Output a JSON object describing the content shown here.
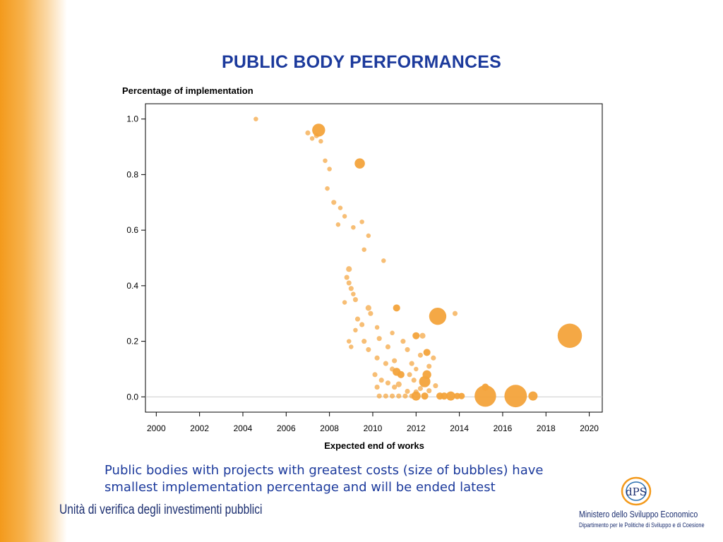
{
  "slide": {
    "title": "PUBLIC BODY PERFORMANCES",
    "caption_line1": "Public bodies with projects with greatest costs (size of bubbles) have",
    "caption_line2": "smallest implementation percentage and will be ended latest",
    "footer_left": "Unità di verifica degli investimenti pubblici",
    "logo_text": "dPS",
    "ministry_name": "Ministero dello Sviluppo Economico",
    "ministry_dept": "Dipartimento per le Politiche di Sviluppo e di Coesione"
  },
  "colors": {
    "accent_orange": "#f39a1c",
    "title_blue": "#1c3a9c",
    "bubble": "#f3a33b"
  },
  "chart_data": {
    "type": "scatter",
    "xlabel": "Expected end of works",
    "ylabel": "Percentage of implementation",
    "xlim": [
      1999.5,
      2020.6
    ],
    "ylim": [
      -0.055,
      1.055
    ],
    "x_ticks": [
      2000,
      2002,
      2004,
      2006,
      2008,
      2010,
      2012,
      2014,
      2016,
      2018,
      2020
    ],
    "y_ticks": [
      "0.0",
      "0.2",
      "0.4",
      "0.6",
      "0.8",
      "1.0"
    ],
    "reference_line_y": 0,
    "grid": false,
    "bubble_size_meaning": "project cost",
    "points": [
      {
        "x": 2004.6,
        "y": 1.0,
        "s": 0.5
      },
      {
        "x": 2007.5,
        "y": 0.96,
        "s": 4
      },
      {
        "x": 2007.0,
        "y": 0.95,
        "s": 0.6
      },
      {
        "x": 2007.2,
        "y": 0.93,
        "s": 0.5
      },
      {
        "x": 2007.4,
        "y": 0.94,
        "s": 0.6
      },
      {
        "x": 2007.6,
        "y": 0.92,
        "s": 0.5
      },
      {
        "x": 2007.8,
        "y": 0.85,
        "s": 0.5
      },
      {
        "x": 2008.0,
        "y": 0.82,
        "s": 0.5
      },
      {
        "x": 2009.4,
        "y": 0.84,
        "s": 2.5
      },
      {
        "x": 2007.9,
        "y": 0.75,
        "s": 0.5
      },
      {
        "x": 2008.2,
        "y": 0.7,
        "s": 0.6
      },
      {
        "x": 2008.5,
        "y": 0.68,
        "s": 0.5
      },
      {
        "x": 2008.7,
        "y": 0.65,
        "s": 0.5
      },
      {
        "x": 2008.4,
        "y": 0.62,
        "s": 0.5
      },
      {
        "x": 2009.1,
        "y": 0.61,
        "s": 0.5
      },
      {
        "x": 2009.5,
        "y": 0.63,
        "s": 0.5
      },
      {
        "x": 2009.8,
        "y": 0.58,
        "s": 0.5
      },
      {
        "x": 2009.6,
        "y": 0.53,
        "s": 0.5
      },
      {
        "x": 2010.5,
        "y": 0.49,
        "s": 0.5
      },
      {
        "x": 2008.9,
        "y": 0.46,
        "s": 0.8
      },
      {
        "x": 2008.8,
        "y": 0.43,
        "s": 0.6
      },
      {
        "x": 2008.9,
        "y": 0.41,
        "s": 0.6
      },
      {
        "x": 2009.0,
        "y": 0.39,
        "s": 0.6
      },
      {
        "x": 2009.1,
        "y": 0.37,
        "s": 0.5
      },
      {
        "x": 2009.2,
        "y": 0.35,
        "s": 0.6
      },
      {
        "x": 2008.7,
        "y": 0.34,
        "s": 0.5
      },
      {
        "x": 2009.8,
        "y": 0.32,
        "s": 0.8
      },
      {
        "x": 2011.1,
        "y": 0.32,
        "s": 1.2
      },
      {
        "x": 2009.9,
        "y": 0.3,
        "s": 0.6
      },
      {
        "x": 2009.3,
        "y": 0.28,
        "s": 0.6
      },
      {
        "x": 2013.0,
        "y": 0.29,
        "s": 7
      },
      {
        "x": 2013.8,
        "y": 0.3,
        "s": 0.6
      },
      {
        "x": 2009.5,
        "y": 0.26,
        "s": 0.6
      },
      {
        "x": 2009.2,
        "y": 0.24,
        "s": 0.5
      },
      {
        "x": 2010.2,
        "y": 0.25,
        "s": 0.5
      },
      {
        "x": 2010.9,
        "y": 0.23,
        "s": 0.5
      },
      {
        "x": 2012.0,
        "y": 0.22,
        "s": 1.2
      },
      {
        "x": 2012.3,
        "y": 0.22,
        "s": 0.8
      },
      {
        "x": 2019.1,
        "y": 0.22,
        "s": 14
      },
      {
        "x": 2008.9,
        "y": 0.2,
        "s": 0.5
      },
      {
        "x": 2009.6,
        "y": 0.2,
        "s": 0.6
      },
      {
        "x": 2010.3,
        "y": 0.21,
        "s": 0.6
      },
      {
        "x": 2011.4,
        "y": 0.2,
        "s": 0.6
      },
      {
        "x": 2009.0,
        "y": 0.18,
        "s": 0.5
      },
      {
        "x": 2009.8,
        "y": 0.17,
        "s": 0.6
      },
      {
        "x": 2010.7,
        "y": 0.18,
        "s": 0.6
      },
      {
        "x": 2011.6,
        "y": 0.17,
        "s": 0.6
      },
      {
        "x": 2012.5,
        "y": 0.16,
        "s": 1.2
      },
      {
        "x": 2012.2,
        "y": 0.15,
        "s": 0.6
      },
      {
        "x": 2012.8,
        "y": 0.14,
        "s": 0.6
      },
      {
        "x": 2010.2,
        "y": 0.14,
        "s": 0.6
      },
      {
        "x": 2011.0,
        "y": 0.13,
        "s": 0.6
      },
      {
        "x": 2010.6,
        "y": 0.12,
        "s": 0.6
      },
      {
        "x": 2011.8,
        "y": 0.12,
        "s": 0.6
      },
      {
        "x": 2012.6,
        "y": 0.11,
        "s": 0.6
      },
      {
        "x": 2010.9,
        "y": 0.1,
        "s": 0.6
      },
      {
        "x": 2012.0,
        "y": 0.1,
        "s": 0.5
      },
      {
        "x": 2011.1,
        "y": 0.09,
        "s": 1.5
      },
      {
        "x": 2011.3,
        "y": 0.08,
        "s": 1.2
      },
      {
        "x": 2011.7,
        "y": 0.08,
        "s": 0.6
      },
      {
        "x": 2012.5,
        "y": 0.08,
        "s": 1.8
      },
      {
        "x": 2010.1,
        "y": 0.08,
        "s": 0.6
      },
      {
        "x": 2010.4,
        "y": 0.06,
        "s": 0.6
      },
      {
        "x": 2011.9,
        "y": 0.06,
        "s": 0.6
      },
      {
        "x": 2012.4,
        "y": 0.055,
        "s": 3
      },
      {
        "x": 2010.7,
        "y": 0.05,
        "s": 0.6
      },
      {
        "x": 2011.2,
        "y": 0.045,
        "s": 0.8
      },
      {
        "x": 2012.9,
        "y": 0.04,
        "s": 0.6
      },
      {
        "x": 2010.2,
        "y": 0.035,
        "s": 0.6
      },
      {
        "x": 2011.0,
        "y": 0.035,
        "s": 0.6
      },
      {
        "x": 2012.2,
        "y": 0.03,
        "s": 0.6
      },
      {
        "x": 2011.6,
        "y": 0.02,
        "s": 0.6
      },
      {
        "x": 2012.0,
        "y": 0.018,
        "s": 0.6
      },
      {
        "x": 2012.6,
        "y": 0.022,
        "s": 0.6
      },
      {
        "x": 2010.3,
        "y": 0.003,
        "s": 0.6
      },
      {
        "x": 2010.6,
        "y": 0.003,
        "s": 0.6
      },
      {
        "x": 2010.9,
        "y": 0.003,
        "s": 0.6
      },
      {
        "x": 2011.2,
        "y": 0.003,
        "s": 0.6
      },
      {
        "x": 2011.5,
        "y": 0.003,
        "s": 0.6
      },
      {
        "x": 2011.8,
        "y": 0.003,
        "s": 0.6
      },
      {
        "x": 2012.0,
        "y": 0.003,
        "s": 2
      },
      {
        "x": 2012.4,
        "y": 0.003,
        "s": 1.2
      },
      {
        "x": 2013.1,
        "y": 0.003,
        "s": 1.2
      },
      {
        "x": 2013.3,
        "y": 0.003,
        "s": 1.2
      },
      {
        "x": 2013.6,
        "y": 0.003,
        "s": 2
      },
      {
        "x": 2013.9,
        "y": 0.003,
        "s": 1
      },
      {
        "x": 2014.1,
        "y": 0.003,
        "s": 1
      },
      {
        "x": 2015.2,
        "y": 0.003,
        "s": 11
      },
      {
        "x": 2016.6,
        "y": 0.003,
        "s": 12
      },
      {
        "x": 2017.4,
        "y": 0.003,
        "s": 2
      },
      {
        "x": 2015.2,
        "y": 0.035,
        "s": 1.2
      }
    ]
  }
}
